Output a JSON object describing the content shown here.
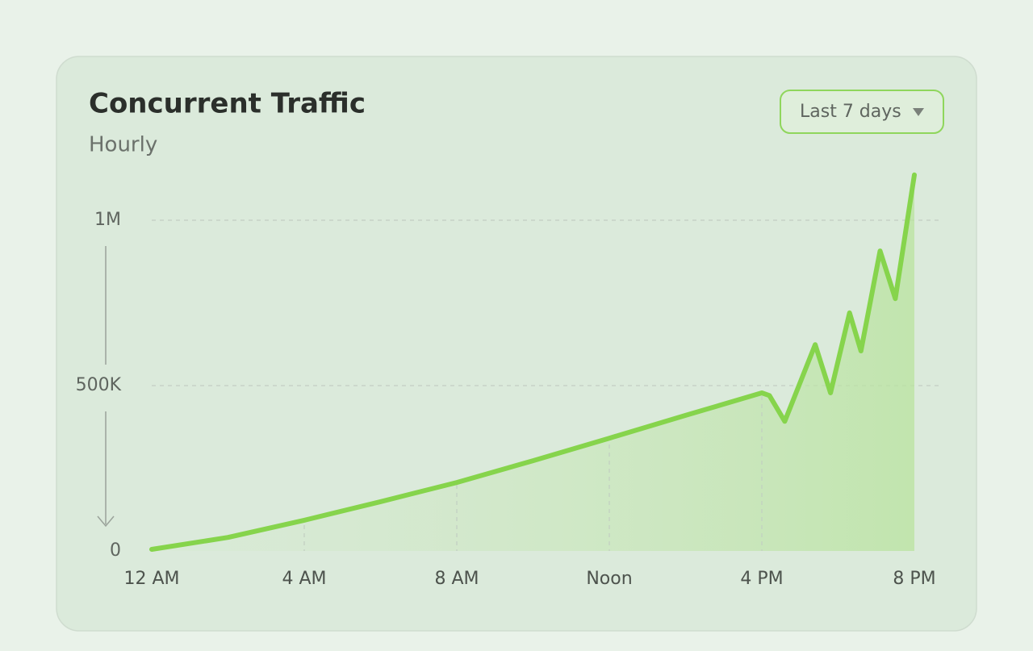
{
  "chart_data": {
    "type": "line",
    "title": "Concurrent Traffic",
    "subtitle": "Hourly",
    "range_selector": "Last 7 days",
    "x": [
      0,
      2,
      4,
      6,
      8,
      10,
      12,
      14,
      16,
      16.2,
      16.6,
      17.4,
      17.8,
      18.3,
      18.6,
      19.1,
      19.5,
      20
    ],
    "values": [
      5000,
      41000,
      93000,
      149000,
      207000,
      273000,
      341000,
      410000,
      478000,
      470000,
      392000,
      624000,
      478000,
      720000,
      605000,
      907000,
      763000,
      1137000
    ],
    "color": "#86d44c",
    "xlim": [
      0,
      20
    ],
    "xticks": [
      {
        "value": 0,
        "label": "12 AM"
      },
      {
        "value": 4,
        "label": "4 AM"
      },
      {
        "value": 8,
        "label": "8 AM"
      },
      {
        "value": 12,
        "label": "Noon"
      },
      {
        "value": 16,
        "label": "4 PM"
      },
      {
        "value": 20,
        "label": "8 PM"
      }
    ],
    "ylim": [
      0,
      1200000
    ],
    "yticks": [
      0,
      {
        "value": 500000,
        "label": "500K"
      },
      {
        "value": 1000000,
        "label": "1M"
      }
    ],
    "grid": true
  }
}
